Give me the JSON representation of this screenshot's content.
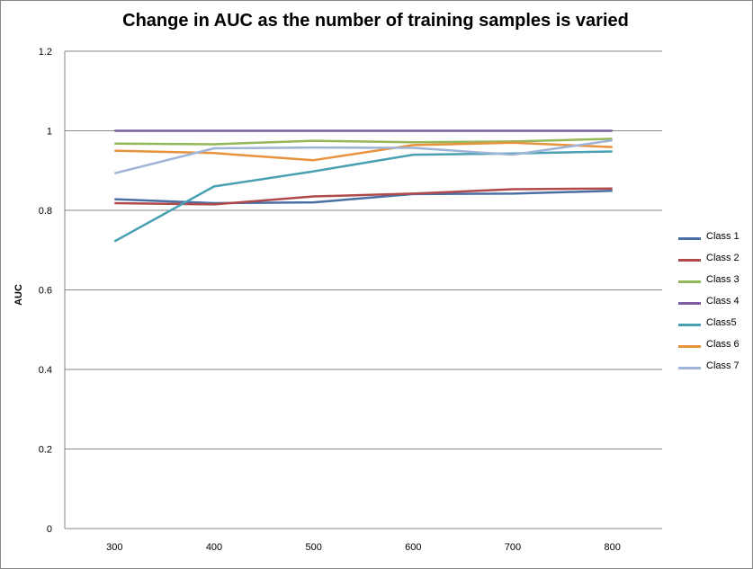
{
  "chart_data": {
    "type": "line",
    "title": "Change in AUC as the number of training samples is varied",
    "xlabel": "",
    "ylabel": "AUC",
    "x": [
      300,
      400,
      500,
      600,
      700,
      800
    ],
    "x_tick_labels": [
      "300",
      "400",
      "500",
      "600",
      "700",
      "800"
    ],
    "y_tick_labels": [
      "0",
      "0.2",
      "0.4",
      "0.6",
      "0.8",
      "1",
      "1.2"
    ],
    "ylim": [
      0,
      1.2
    ],
    "grid": "horizontal",
    "legend_position": "right",
    "series": [
      {
        "name": "Class 1",
        "color": "#4a6fa5",
        "values": [
          0.828,
          0.818,
          0.82,
          0.841,
          0.842,
          0.849
        ]
      },
      {
        "name": "Class 2",
        "color": "#b04a4a",
        "values": [
          0.818,
          0.815,
          0.835,
          0.842,
          0.853,
          0.855
        ]
      },
      {
        "name": "Class 3",
        "color": "#94b75a",
        "values": [
          0.968,
          0.966,
          0.975,
          0.971,
          0.973,
          0.98
        ]
      },
      {
        "name": "Class 4",
        "color": "#7b5da0",
        "values": [
          1.0,
          1.0,
          1.0,
          1.0,
          1.0,
          1.0
        ]
      },
      {
        "name": "Class5",
        "color": "#4aa0b3",
        "values": [
          0.722,
          0.86,
          0.898,
          0.94,
          0.943,
          0.948
        ]
      },
      {
        "name": "Class 6",
        "color": "#e8923c",
        "values": [
          0.95,
          0.944,
          0.926,
          0.964,
          0.97,
          0.959
        ]
      },
      {
        "name": "Class 7",
        "color": "#9fb4d6",
        "values": [
          0.893,
          0.956,
          0.958,
          0.957,
          0.94,
          0.976
        ]
      }
    ]
  }
}
